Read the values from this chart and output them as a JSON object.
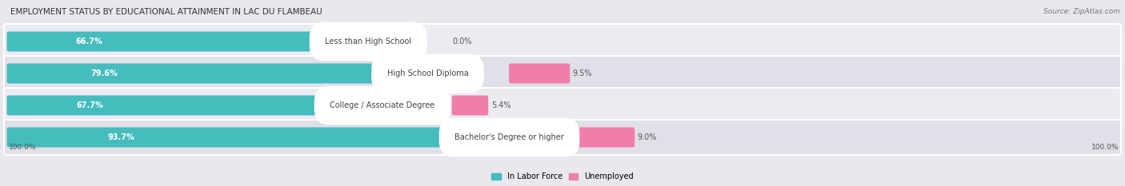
{
  "title": "EMPLOYMENT STATUS BY EDUCATIONAL ATTAINMENT IN LAC DU FLAMBEAU",
  "source": "Source: ZipAtlas.com",
  "categories": [
    "Less than High School",
    "High School Diploma",
    "College / Associate Degree",
    "Bachelor's Degree or higher"
  ],
  "labor_force": [
    66.7,
    79.6,
    67.7,
    93.7
  ],
  "unemployed": [
    0.0,
    9.5,
    5.4,
    9.0
  ],
  "labor_force_color": "#45BCBE",
  "unemployed_color": "#F07EAA",
  "bg_color": "#e8e8ee",
  "row_bg_color": "#e0e0e8",
  "row_bg_color2": "#ebebf2",
  "title_fontsize": 7.5,
  "label_fontsize": 7.0,
  "value_fontsize": 7.0,
  "tick_fontsize": 6.5,
  "source_fontsize": 6.5,
  "legend_fontsize": 7.0,
  "axis_left_label": "100.0%",
  "axis_right_label": "100.0%"
}
